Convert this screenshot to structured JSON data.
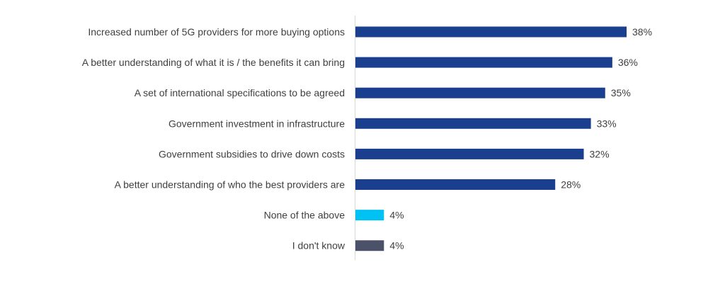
{
  "chart_data": {
    "type": "bar",
    "orientation": "horizontal",
    "categories": [
      "Increased number of 5G providers for more buying options",
      "A better understanding of what it is / the benefits it can bring",
      "A set of international specifications to be agreed",
      "Government investment in infrastructure",
      "Government subsidies to drive down costs",
      "A better understanding of who the best providers are",
      "None of the above",
      "I don't know"
    ],
    "values": [
      38,
      36,
      35,
      33,
      32,
      28,
      4,
      4
    ],
    "value_labels": [
      "38%",
      "36%",
      "35%",
      "33%",
      "32%",
      "28%",
      "4%",
      "4%"
    ],
    "bar_colors": [
      "#1b3f8f",
      "#1b3f8f",
      "#1b3f8f",
      "#1b3f8f",
      "#1b3f8f",
      "#1b3f8f",
      "#00c1f3",
      "#4a5168"
    ],
    "xlim": [
      0,
      38
    ],
    "grid": false,
    "legend": "none"
  }
}
